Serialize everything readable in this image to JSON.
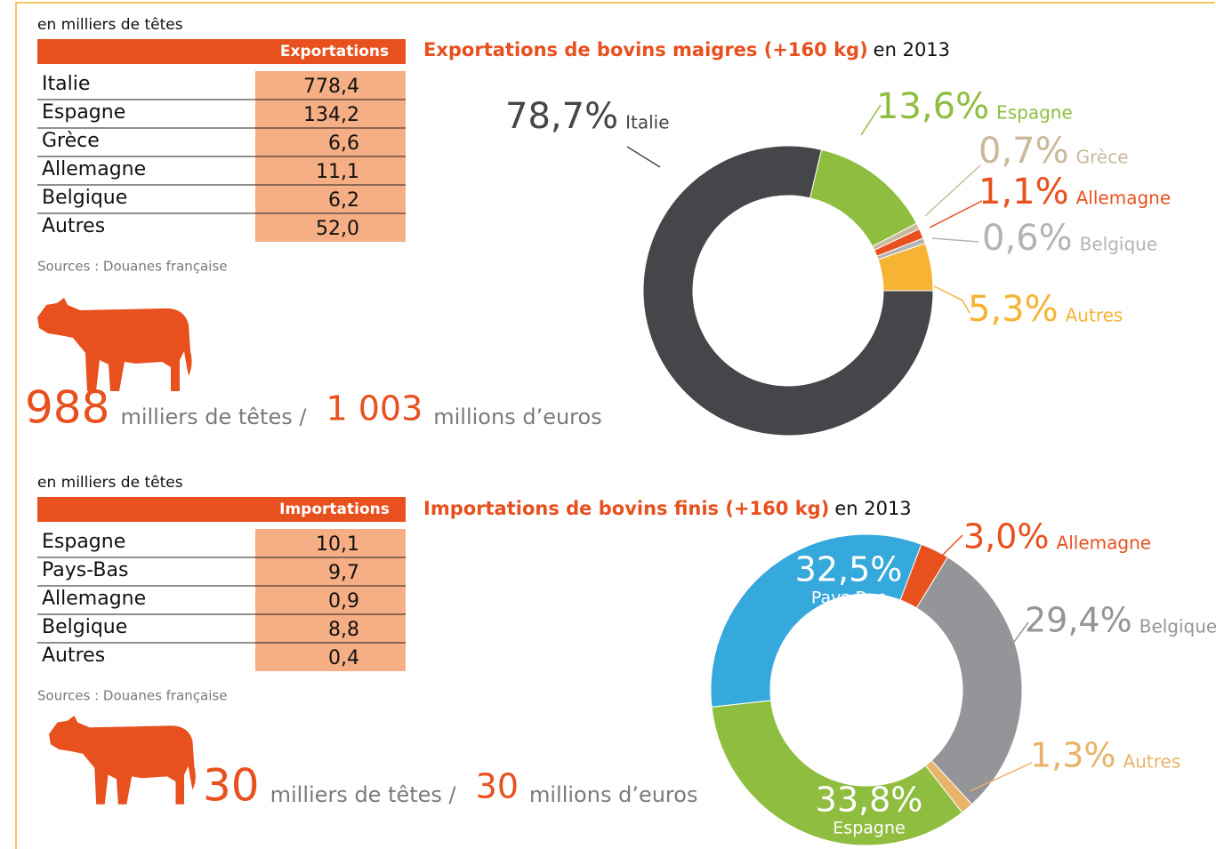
{
  "sections": [
    {
      "unit_note": "en milliers de têtes",
      "table": {
        "header": "Exportations",
        "rows": [
          [
            "Italie",
            "778,4"
          ],
          [
            "Espagne",
            "134,2"
          ],
          [
            "Grèce",
            "6,6"
          ],
          [
            "Allemagne",
            "11,1"
          ],
          [
            "Belgique",
            "6,2"
          ],
          [
            "Autres",
            "52,0"
          ]
        ]
      },
      "source": "Sources : Douanes française",
      "totals": {
        "heads": "988",
        "heads_label": "milliers de têtes /",
        "value": "1 003",
        "value_label": "millions d’euros"
      }
    },
    {
      "unit_note": "en milliers de têtes",
      "table": {
        "header": "Importations",
        "rows": [
          [
            "Espagne",
            "10,1"
          ],
          [
            "Pays-Bas",
            "9,7"
          ],
          [
            "Allemagne",
            "0,9"
          ],
          [
            "Belgique",
            "8,8"
          ],
          [
            "Autres",
            "0,4"
          ]
        ]
      },
      "source": "Sources : Douanes française",
      "totals": {
        "heads": "30",
        "heads_label": "milliers de têtes /",
        "value": "30",
        "value_label": "millions d’euros"
      }
    }
  ],
  "chart_data": [
    {
      "type": "donut",
      "title": "Exportations de bovins maigres (+160 kg)",
      "title_suffix": "en 2013",
      "categories": [
        "Italie",
        "Espagne",
        "Grèce",
        "Allemagne",
        "Belgique",
        "Autres"
      ],
      "values": [
        78.7,
        13.6,
        0.7,
        1.1,
        0.6,
        5.3
      ],
      "value_labels": [
        "78,7%",
        "13,6%",
        "0,7%",
        "1,1%",
        "0,6%",
        "5,3%"
      ],
      "colors": [
        "#454649",
        "#8fbd3f",
        "#c9b99b",
        "#e8501e",
        "#b3b3b3",
        "#f6b334"
      ]
    },
    {
      "type": "donut",
      "title": "Importations de bovins finis (+160 kg)",
      "title_suffix": "en 2013",
      "categories": [
        "Espagne",
        "Pays-Bas",
        "Allemagne",
        "Belgique",
        "Autres"
      ],
      "values": [
        33.8,
        32.5,
        3.0,
        29.4,
        1.3
      ],
      "value_labels": [
        "33,8%",
        "32,5%",
        "3,0%",
        "29,4%",
        "1,3%"
      ],
      "colors": [
        "#8fbd3f",
        "#36a9dc",
        "#e8501e",
        "#939598",
        "#e8b36a"
      ]
    }
  ]
}
